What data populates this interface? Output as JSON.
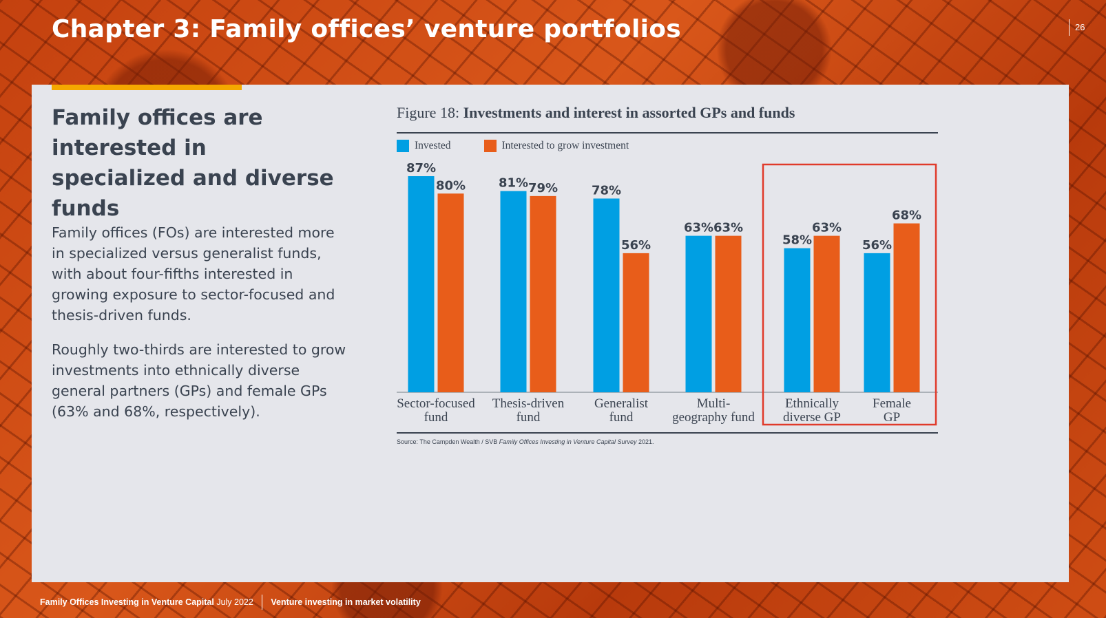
{
  "header": {
    "title": "Chapter 3: Family offices’ venture portfolios",
    "page_number": "26"
  },
  "left": {
    "headline": "Family offices are interested in specialized and diverse funds",
    "paragraph1": "Family offices (FOs) are interested more in specialized versus generalist funds, with about four-fifths interested in growing exposure to sector-focused and thesis-driven funds.",
    "paragraph2": "Roughly two-thirds are interested to grow investments into ethnically diverse general partners (GPs) and female GPs (63% and 68%, respectively)."
  },
  "figure": {
    "label": "Figure 18: ",
    "title": "Investments and interest in assorted GPs and funds",
    "source_prefix": "Source: The Campden Wealth / SVB ",
    "source_italic": "Family Offices Investing in Venture Capital Survey",
    "source_suffix": " 2021."
  },
  "chart_data": {
    "type": "bar",
    "title": "Investments and interest in assorted GPs and funds",
    "categories": [
      [
        "Sector-focused",
        "fund"
      ],
      [
        "Thesis-driven",
        "fund"
      ],
      [
        "Generalist",
        "fund"
      ],
      [
        "Multi-",
        "geography fund"
      ],
      [
        "Ethnically",
        "diverse GP"
      ],
      [
        "Female",
        "GP"
      ]
    ],
    "series": [
      {
        "name": "Invested",
        "color": "#009fe3",
        "values": [
          87,
          81,
          78,
          63,
          58,
          56
        ]
      },
      {
        "name": "Interested to grow investment",
        "color": "#e85d1a",
        "values": [
          80,
          79,
          56,
          63,
          63,
          68
        ]
      }
    ],
    "value_suffix": "%",
    "ylim": [
      0,
      100
    ],
    "highlighted_categories": [
      4,
      5
    ],
    "highlight_color": "#e03a2a",
    "legend": "top-left"
  },
  "footer": {
    "publication": "Family Offices Investing in Venture Capital",
    "date": " July 2022",
    "section": "Venture investing in market volatility"
  }
}
